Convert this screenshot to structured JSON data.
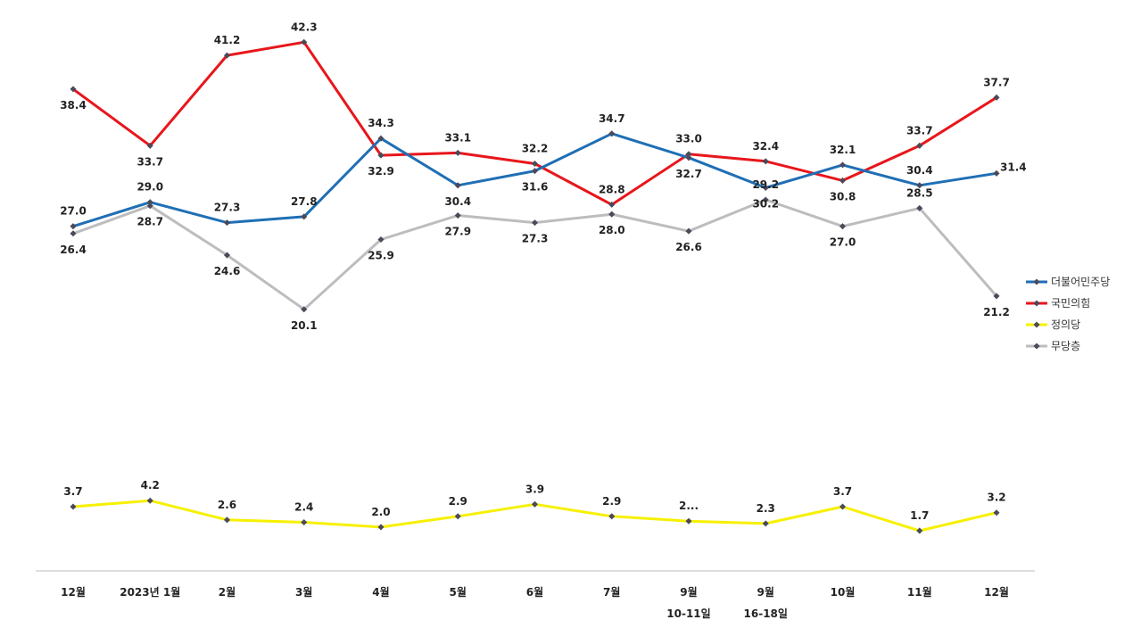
{
  "chart_data": {
    "type": "line",
    "categories": [
      [
        "12월"
      ],
      [
        "2023년 1월"
      ],
      [
        "2월"
      ],
      [
        "3월"
      ],
      [
        "4월"
      ],
      [
        "5월"
      ],
      [
        "6월"
      ],
      [
        "7월"
      ],
      [
        "9월",
        "10-11일"
      ],
      [
        "9월",
        "16-18일"
      ],
      [
        "10월"
      ],
      [
        "11월"
      ],
      [
        "12월"
      ]
    ],
    "series": [
      {
        "name": "더불어민주당",
        "color": "#1f6fb5",
        "values": [
          27.0,
          29.0,
          27.3,
          27.8,
          34.3,
          30.4,
          31.6,
          34.7,
          32.7,
          30.2,
          32.1,
          30.4,
          31.4
        ]
      },
      {
        "name": "국민의힘",
        "color": "#e8161b",
        "values": [
          38.4,
          33.7,
          41.2,
          42.3,
          32.9,
          33.1,
          32.2,
          28.8,
          33.0,
          32.4,
          30.8,
          33.7,
          37.7
        ]
      },
      {
        "name": "정의당",
        "color": "#f7f000",
        "values": [
          3.7,
          4.2,
          2.6,
          2.4,
          2.0,
          2.9,
          3.9,
          2.9,
          2.5,
          2.3,
          3.7,
          1.7,
          3.2
        ]
      },
      {
        "name": "무당층",
        "color": "#bdbdbd",
        "values": [
          26.4,
          28.7,
          24.6,
          20.1,
          25.9,
          27.9,
          27.3,
          28.0,
          26.6,
          29.2,
          27.0,
          28.5,
          21.2
        ]
      }
    ],
    "data_labels": {
      "정의당": [
        "3.7",
        "4.2",
        "2.6",
        "2.4",
        "2.0",
        "2.9",
        "3.9",
        "2.9",
        "2...",
        "2.3",
        "3.7",
        "1.7",
        "3.2"
      ]
    },
    "legend_position": "right",
    "grid": false
  }
}
